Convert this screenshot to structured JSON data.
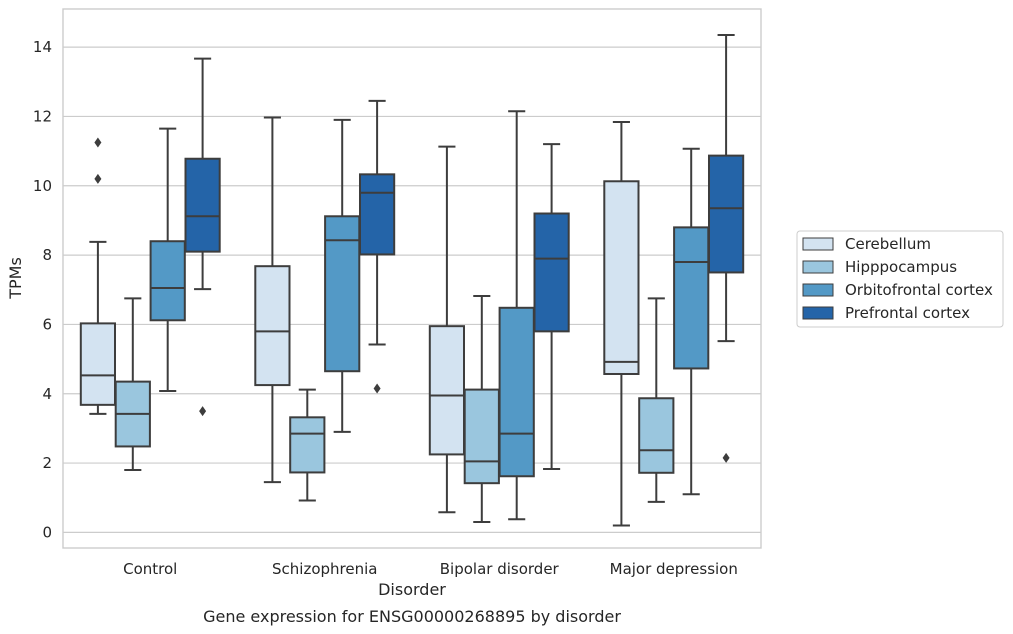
{
  "chart_data": {
    "type": "box",
    "caption": "Gene expression for ENSG00000268895 by disorder",
    "xlabel": "Disorder",
    "ylabel": "TPMs",
    "ylim": [
      -0.45,
      15.1
    ],
    "yticks": [
      0,
      2,
      4,
      6,
      8,
      10,
      12,
      14
    ],
    "grid": true,
    "legend_position": "right",
    "categories": [
      "Control",
      "Schizophrenia",
      "Bipolar disorder",
      "Major depression"
    ],
    "series": [
      {
        "name": "Cerebellum",
        "color": "#d3e3f1",
        "boxes": [
          {
            "whislo": 3.42,
            "q1": 3.68,
            "med": 4.53,
            "q3": 6.03,
            "whishi": 8.38,
            "fliers": [
              10.2,
              11.25
            ]
          },
          {
            "whislo": 1.45,
            "q1": 4.25,
            "med": 5.8,
            "q3": 7.68,
            "whishi": 11.97,
            "fliers": []
          },
          {
            "whislo": 0.58,
            "q1": 2.25,
            "med": 3.95,
            "q3": 5.95,
            "whishi": 11.13,
            "fliers": []
          },
          {
            "whislo": 0.2,
            "q1": 4.57,
            "med": 4.92,
            "q3": 10.13,
            "whishi": 11.84,
            "fliers": []
          }
        ]
      },
      {
        "name": "Hipppocampus",
        "color": "#9ac6de",
        "boxes": [
          {
            "whislo": 1.8,
            "q1": 2.48,
            "med": 3.42,
            "q3": 4.35,
            "whishi": 6.75,
            "fliers": []
          },
          {
            "whislo": 0.92,
            "q1": 1.73,
            "med": 2.85,
            "q3": 3.32,
            "whishi": 4.12,
            "fliers": []
          },
          {
            "whislo": 0.3,
            "q1": 1.42,
            "med": 2.05,
            "q3": 4.12,
            "whishi": 6.82,
            "fliers": []
          },
          {
            "whislo": 0.88,
            "q1": 1.72,
            "med": 2.37,
            "q3": 3.87,
            "whishi": 6.75,
            "fliers": []
          }
        ]
      },
      {
        "name": "Orbitofrontal cortex",
        "color": "#5399c6",
        "boxes": [
          {
            "whislo": 4.08,
            "q1": 6.12,
            "med": 7.05,
            "q3": 8.4,
            "whishi": 11.65,
            "fliers": []
          },
          {
            "whislo": 2.9,
            "q1": 4.65,
            "med": 8.43,
            "q3": 9.12,
            "whishi": 11.9,
            "fliers": []
          },
          {
            "whislo": 0.38,
            "q1": 1.62,
            "med": 2.85,
            "q3": 6.48,
            "whishi": 12.15,
            "fliers": []
          },
          {
            "whislo": 1.1,
            "q1": 4.73,
            "med": 7.8,
            "q3": 8.8,
            "whishi": 11.07,
            "fliers": []
          }
        ]
      },
      {
        "name": "Prefrontal cortex",
        "color": "#2464a8",
        "boxes": [
          {
            "whislo": 7.02,
            "q1": 8.1,
            "med": 9.12,
            "q3": 10.78,
            "whishi": 13.67,
            "fliers": [
              3.5
            ]
          },
          {
            "whislo": 5.42,
            "q1": 8.02,
            "med": 9.8,
            "q3": 10.33,
            "whishi": 12.45,
            "fliers": [
              4.15
            ]
          },
          {
            "whislo": 1.83,
            "q1": 5.8,
            "med": 7.9,
            "q3": 9.2,
            "whishi": 11.2,
            "fliers": []
          },
          {
            "whislo": 5.52,
            "q1": 7.5,
            "med": 9.35,
            "q3": 10.87,
            "whishi": 14.35,
            "fliers": [
              2.15
            ]
          }
        ]
      }
    ]
  }
}
